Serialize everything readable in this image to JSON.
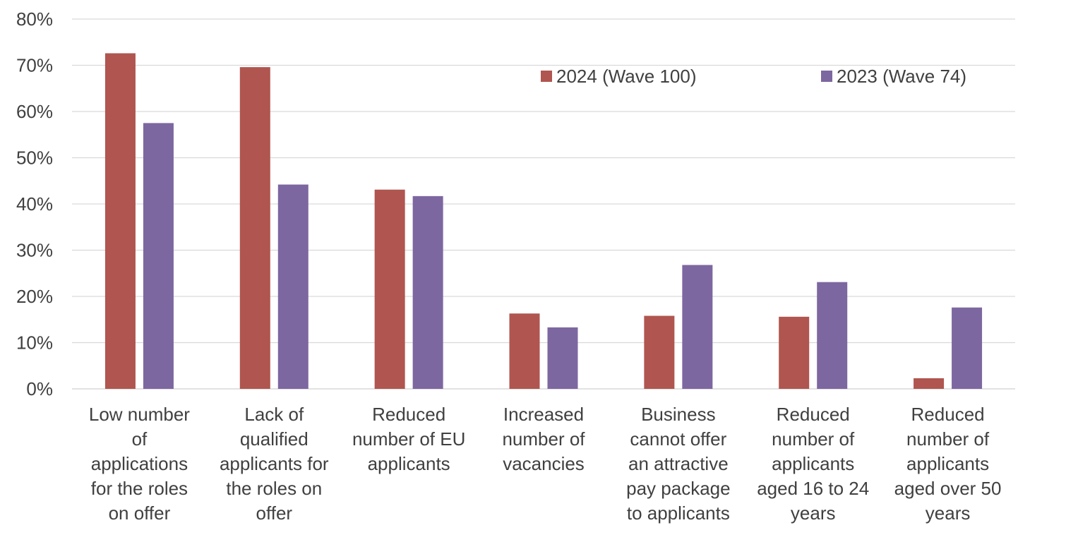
{
  "chart_data": {
    "type": "bar",
    "title": "",
    "xlabel": "",
    "ylabel": "",
    "ylim": [
      0,
      80
    ],
    "y_ticks": [
      "0%",
      "10%",
      "20%",
      "30%",
      "40%",
      "50%",
      "60%",
      "70%",
      "80%"
    ],
    "grid": true,
    "legend_position": "top-right",
    "categories": [
      [
        "Low number",
        "of",
        "applications",
        "for the roles",
        "on offer"
      ],
      [
        "Lack of",
        "qualified",
        "applicants for",
        "the roles on",
        "offer"
      ],
      [
        "Reduced",
        "number of EU",
        "applicants"
      ],
      [
        "Increased",
        "number of",
        "vacancies"
      ],
      [
        "Business",
        "cannot offer",
        "an attractive",
        "pay package",
        "to applicants"
      ],
      [
        "Reduced",
        "number of",
        "applicants",
        "aged 16 to 24",
        "years"
      ],
      [
        "Reduced",
        "number of",
        "applicants",
        "aged over 50",
        "years"
      ]
    ],
    "series": [
      {
        "name": "2024 (Wave 100)",
        "color": "#b0554f",
        "values": [
          72.6,
          69.6,
          43.1,
          16.3,
          15.8,
          15.6,
          2.3
        ]
      },
      {
        "name": "2023 (Wave 74)",
        "color": "#7d67a0",
        "values": [
          57.5,
          44.2,
          41.7,
          13.3,
          26.8,
          23.1,
          17.6
        ]
      }
    ]
  }
}
